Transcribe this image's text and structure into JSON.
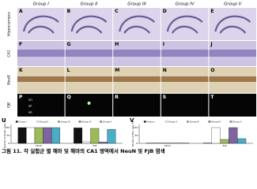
{
  "figure": {
    "columns": [
      "Group I",
      "Group II",
      "Group III",
      "Group IV",
      "Group V"
    ],
    "rows": [
      {
        "label": "Hippocampus",
        "panels": [
          "A",
          "B",
          "C",
          "D",
          "E"
        ]
      },
      {
        "label": "CA1",
        "panels": [
          "F",
          "G",
          "H",
          "I",
          "J"
        ]
      },
      {
        "label": "NeuN",
        "panels": [
          "K",
          "L",
          "M",
          "N",
          "O"
        ]
      },
      {
        "label": "FJB",
        "panels": [
          "P",
          "Q",
          "R",
          "S",
          "T"
        ]
      }
    ],
    "fjb_layers": [
      "SO",
      "SP",
      "SR"
    ],
    "caption": "그림 11. 각 실험군 별 해마 및 해마의 CA1 영역에서 NeuN 및 FJB 염색"
  },
  "chart_data": [
    {
      "type": "bar",
      "panel_label": "U",
      "y_label": "Number of NeuN+ cells (%)",
      "categories": [
        "Mock",
        "TLE"
      ],
      "series": [
        {
          "name": "Group I",
          "color": "#111111",
          "values": [
            100,
            98
          ]
        },
        {
          "name": "Group II",
          "color": "#ffffff",
          "values": [
            100,
            10
          ]
        },
        {
          "name": "Group III",
          "color": "#9bbb59",
          "values": [
            100,
            95
          ]
        },
        {
          "name": "Group IV",
          "color": "#8064a2",
          "values": [
            100,
            8
          ]
        },
        {
          "name": "Group V",
          "color": "#4bacc6",
          "values": [
            100,
            88
          ]
        }
      ],
      "ylim": [
        0,
        120
      ],
      "yticks": [
        0,
        50,
        100
      ]
    },
    {
      "type": "bar",
      "panel_label": "V",
      "y_label": "Number of FJB+ cells (%)",
      "categories": [
        "Mock",
        "TLE"
      ],
      "series": [
        {
          "name": "Group I",
          "color": "#111111",
          "values": [
            1,
            2
          ]
        },
        {
          "name": "Group II",
          "color": "#ffffff",
          "values": [
            1,
            100
          ]
        },
        {
          "name": "Group III",
          "color": "#9bbb59",
          "values": [
            1,
            25
          ]
        },
        {
          "name": "Group IV",
          "color": "#8064a2",
          "values": [
            1,
            100
          ]
        },
        {
          "name": "Group V",
          "color": "#4bacc6",
          "values": [
            1,
            30
          ]
        }
      ],
      "ylim": [
        0,
        120
      ],
      "yticks": [
        0,
        50,
        100
      ]
    }
  ]
}
